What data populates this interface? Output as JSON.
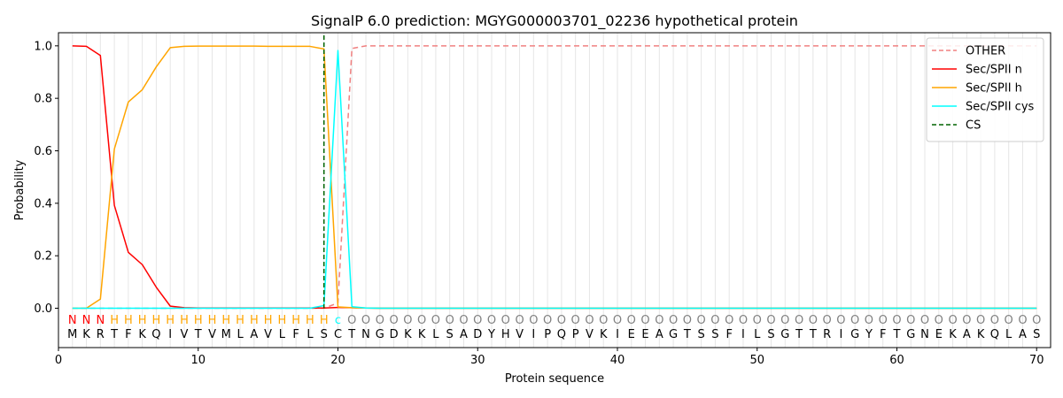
{
  "chart_data": {
    "type": "line",
    "title": "SignalP 6.0 prediction: MGYG000003701_02236 hypothetical protein",
    "xlabel": "Protein sequence",
    "ylabel": "Probability",
    "xlim": [
      0,
      71
    ],
    "ylim": [
      -0.15,
      1.05
    ],
    "xticks": [
      0,
      10,
      20,
      30,
      40,
      50,
      60,
      70
    ],
    "yticks": [
      0.0,
      0.2,
      0.4,
      0.6,
      0.8,
      1.0
    ],
    "ytick_labels": [
      "0.0",
      "0.2",
      "0.4",
      "0.6",
      "0.8",
      "1.0"
    ],
    "legend_position": "top-right",
    "sequence": [
      "M",
      "K",
      "R",
      "T",
      "F",
      "K",
      "Q",
      "I",
      "V",
      "T",
      "V",
      "M",
      "L",
      "A",
      "V",
      "L",
      "F",
      "L",
      "S",
      "C",
      "T",
      "N",
      "G",
      "D",
      "K",
      "K",
      "L",
      "S",
      "A",
      "D",
      "Y",
      "H",
      "V",
      "I",
      "P",
      "Q",
      "P",
      "V",
      "K",
      "I",
      "E",
      "E",
      "A",
      "G",
      "T",
      "S",
      "S",
      "F",
      "I",
      "L",
      "S",
      "G",
      "T",
      "T",
      "R",
      "I",
      "G",
      "Y",
      "F",
      "T",
      "G",
      "N",
      "E",
      "K",
      "A",
      "K",
      "Q",
      "L",
      "A",
      "S"
    ],
    "predicted_labels": [
      "N",
      "N",
      "N",
      "H",
      "H",
      "H",
      "H",
      "H",
      "H",
      "H",
      "H",
      "H",
      "H",
      "H",
      "H",
      "H",
      "H",
      "H",
      "H",
      "C",
      "O",
      "O",
      "O",
      "O",
      "O",
      "O",
      "O",
      "O",
      "O",
      "O",
      "O",
      "O",
      "O",
      "O",
      "O",
      "O",
      "O",
      "O",
      "O",
      "O",
      "O",
      "O",
      "O",
      "O",
      "O",
      "O",
      "O",
      "O",
      "O",
      "O",
      "O",
      "O",
      "O",
      "O",
      "O",
      "O",
      "O",
      "O",
      "O",
      "O",
      "O",
      "O",
      "O",
      "O",
      "O",
      "O",
      "O",
      "O",
      "O",
      "O"
    ],
    "label_display": {
      "N": "N",
      "H": "H",
      "C": "c",
      "O": "O"
    },
    "label_colors": {
      "N": "#ff0000",
      "H": "#ffa500",
      "C": "#00ffff",
      "O": "#808080"
    },
    "cleavage_site": 19,
    "series": [
      {
        "name": "OTHER",
        "color": "#f08080",
        "dash": true,
        "values": [
          0,
          0,
          0,
          0,
          0,
          0,
          0,
          0,
          0,
          0,
          0,
          0,
          0,
          0,
          0,
          0,
          0,
          0,
          0,
          0.02,
          0.99,
          1.0,
          1.0,
          1.0,
          1.0,
          1.0,
          1.0,
          1.0,
          1.0,
          1.0,
          1.0,
          1.0,
          1.0,
          1.0,
          1.0,
          1.0,
          1.0,
          1.0,
          1.0,
          1.0,
          1.0,
          1.0,
          1.0,
          1.0,
          1.0,
          1.0,
          1.0,
          1.0,
          1.0,
          1.0,
          1.0,
          1.0,
          1.0,
          1.0,
          1.0,
          1.0,
          1.0,
          1.0,
          1.0,
          1.0,
          1.0,
          1.0,
          1.0,
          1.0,
          1.0,
          1.0,
          1.0,
          1.0,
          1.0,
          1.0
        ]
      },
      {
        "name": "Sec/SPII n",
        "color": "#ff0000",
        "dash": false,
        "values": [
          1.0,
          0.998,
          0.963,
          0.392,
          0.213,
          0.166,
          0.08,
          0.008,
          0.002,
          0.001,
          0.001,
          0.001,
          0.001,
          0.001,
          0.001,
          0.001,
          0.001,
          0.001,
          0.001,
          0.003,
          0.002,
          0.001,
          0,
          0,
          0,
          0,
          0,
          0,
          0,
          0,
          0,
          0,
          0,
          0,
          0,
          0,
          0,
          0,
          0,
          0,
          0,
          0,
          0,
          0,
          0,
          0,
          0,
          0,
          0,
          0,
          0,
          0,
          0,
          0,
          0,
          0,
          0,
          0,
          0,
          0,
          0,
          0,
          0,
          0,
          0,
          0,
          0,
          0,
          0,
          0
        ]
      },
      {
        "name": "Sec/SPII h",
        "color": "#ffa500",
        "dash": false,
        "values": [
          0,
          0,
          0.035,
          0.607,
          0.786,
          0.833,
          0.92,
          0.993,
          0.998,
          0.999,
          0.999,
          0.999,
          0.999,
          0.999,
          0.998,
          0.998,
          0.998,
          0.998,
          0.988,
          0.005,
          0.002,
          0.001,
          0,
          0,
          0,
          0,
          0,
          0,
          0,
          0,
          0,
          0,
          0,
          0,
          0,
          0,
          0,
          0,
          0,
          0,
          0,
          0,
          0,
          0,
          0,
          0,
          0,
          0,
          0,
          0,
          0,
          0,
          0,
          0,
          0,
          0,
          0,
          0,
          0,
          0,
          0,
          0,
          0,
          0,
          0,
          0,
          0,
          0,
          0,
          0
        ]
      },
      {
        "name": "Sec/SPII cys",
        "color": "#00ffff",
        "dash": false,
        "values": [
          0,
          0,
          0,
          0,
          0,
          0,
          0,
          0,
          0,
          0,
          0,
          0,
          0,
          0,
          0,
          0,
          0,
          0,
          0.01,
          0.982,
          0.006,
          0.001,
          0,
          0,
          0,
          0,
          0,
          0,
          0,
          0,
          0,
          0,
          0,
          0,
          0,
          0,
          0,
          0,
          0,
          0,
          0,
          0,
          0,
          0,
          0,
          0,
          0,
          0,
          0,
          0,
          0,
          0,
          0,
          0,
          0,
          0,
          0,
          0,
          0,
          0,
          0,
          0,
          0,
          0,
          0,
          0,
          0,
          0,
          0,
          0
        ]
      },
      {
        "name": "CS",
        "color": "#006400",
        "dash": true,
        "values": []
      }
    ]
  }
}
